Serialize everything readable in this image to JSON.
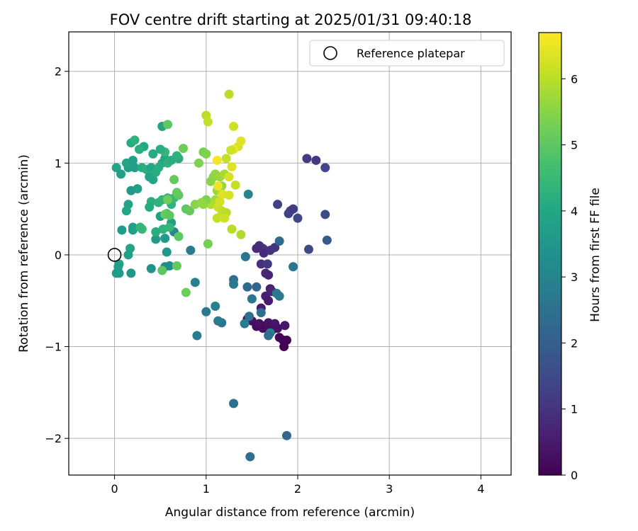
{
  "chart_data": {
    "type": "scatter",
    "title": "FOV centre drift starting at 2025/01/31 09:40:18",
    "xlabel": "Angular distance from reference (arcmin)",
    "ylabel": "Rotation from reference (arcmin)",
    "xlim": [
      -0.5,
      4.33
    ],
    "ylim": [
      -2.4,
      2.43
    ],
    "xticks": [
      "0",
      "1",
      "2",
      "3",
      "4"
    ],
    "yticks": [
      "2",
      "1",
      "0",
      "−1",
      "−2"
    ],
    "grid": true,
    "legend": {
      "placement": "top-right",
      "entries": [
        "Reference platepar"
      ]
    },
    "reference_point": {
      "name": "Reference platepar",
      "x": 0,
      "y": 0
    },
    "colorbar": {
      "label": "Hours from first FF file",
      "range": [
        0,
        6.7
      ],
      "ticks": [
        "0",
        "1",
        "2",
        "3",
        "4",
        "5",
        "6"
      ],
      "colormap": "viridis"
    },
    "points": [
      [
        1.45,
        -0.7,
        0.2
      ],
      [
        1.5,
        -0.72,
        0.3
      ],
      [
        1.55,
        -0.78,
        0.2
      ],
      [
        1.58,
        -0.75,
        0.3
      ],
      [
        1.62,
        -0.8,
        0.25
      ],
      [
        1.65,
        -0.77,
        0.2
      ],
      [
        1.68,
        -0.74,
        0.35
      ],
      [
        1.7,
        -0.78,
        0.3
      ],
      [
        1.72,
        -0.82,
        0.2
      ],
      [
        1.75,
        -0.75,
        0.4
      ],
      [
        1.78,
        -0.8,
        0.3
      ],
      [
        1.8,
        -0.9,
        0.1
      ],
      [
        1.84,
        -0.93,
        0.05
      ],
      [
        1.85,
        -1.0,
        0.0
      ],
      [
        1.88,
        -0.93,
        0.05
      ],
      [
        1.86,
        -0.77,
        0.4
      ],
      [
        1.6,
        -0.58,
        0.5
      ],
      [
        1.65,
        -0.45,
        0.6
      ],
      [
        1.68,
        -0.5,
        0.5
      ],
      [
        1.7,
        -0.37,
        0.6
      ],
      [
        1.72,
        -0.4,
        0.7
      ],
      [
        1.65,
        -0.2,
        0.8
      ],
      [
        1.68,
        -0.22,
        0.7
      ],
      [
        1.6,
        -0.1,
        0.9
      ],
      [
        1.62,
        0.07,
        1.0
      ],
      [
        1.58,
        0.1,
        0.9
      ],
      [
        1.55,
        0.07,
        0.8
      ],
      [
        1.63,
        0.02,
        0.85
      ],
      [
        1.7,
        0.05,
        0.95
      ],
      [
        1.75,
        0.08,
        1.0
      ],
      [
        1.67,
        -0.1,
        1.1
      ],
      [
        1.78,
        0.55,
        1.3
      ],
      [
        2.2,
        1.03,
        1.1
      ],
      [
        2.1,
        1.05,
        1.2
      ],
      [
        2.3,
        0.95,
        1.4
      ],
      [
        1.9,
        0.45,
        1.3
      ],
      [
        1.92,
        0.48,
        1.35
      ],
      [
        2.0,
        0.4,
        1.4
      ],
      [
        1.95,
        0.5,
        1.2
      ],
      [
        2.3,
        0.44,
        1.6
      ],
      [
        2.32,
        0.16,
        1.9
      ],
      [
        2.12,
        0.06,
        1.5
      ],
      [
        1.8,
        0.15,
        2.3
      ],
      [
        1.95,
        -0.13,
        2.6
      ],
      [
        1.8,
        -0.45,
        2.8
      ],
      [
        1.77,
        -0.42,
        2.7
      ],
      [
        1.7,
        -0.85,
        2.9
      ],
      [
        1.6,
        -0.63,
        2.5
      ],
      [
        1.68,
        -0.88,
        2.4
      ],
      [
        1.55,
        -0.35,
        2.2
      ],
      [
        1.5,
        -0.48,
        2.6
      ],
      [
        1.47,
        -0.67,
        2.5
      ],
      [
        1.42,
        -0.75,
        2.8
      ],
      [
        1.45,
        -0.35,
        2.3
      ],
      [
        1.43,
        -0.02,
        2.6
      ],
      [
        1.3,
        -0.27,
        2.5
      ],
      [
        1.3,
        -0.32,
        2.7
      ],
      [
        1.17,
        -0.74,
        2.6
      ],
      [
        1.13,
        -0.72,
        2.8
      ],
      [
        1.1,
        -0.56,
        2.9
      ],
      [
        1.0,
        -0.62,
        2.7
      ],
      [
        0.9,
        -0.88,
        2.8
      ],
      [
        0.88,
        -0.3,
        2.9
      ],
      [
        0.83,
        0.05,
        2.8
      ],
      [
        1.46,
        0.66,
        3.0
      ],
      [
        1.3,
        -1.62,
        2.5
      ],
      [
        1.88,
        -1.97,
        2.2
      ],
      [
        1.48,
        -2.2,
        2.4
      ],
      [
        0.65,
        0.25,
        3.1
      ],
      [
        0.6,
        -0.12,
        3.3
      ],
      [
        0.57,
        0.03,
        3.5
      ],
      [
        0.55,
        0.18,
        3.6
      ],
      [
        0.62,
        0.35,
        3.7
      ],
      [
        0.5,
        0.42,
        3.8
      ],
      [
        0.45,
        0.17,
        3.6
      ],
      [
        0.55,
        -0.13,
        3.2
      ],
      [
        0.4,
        -0.15,
        3.4
      ],
      [
        0.2,
        0.27,
        3.7
      ],
      [
        0.2,
        0.3,
        3.8
      ],
      [
        0.17,
        0.07,
        3.9
      ],
      [
        0.15,
        0.0,
        3.8
      ],
      [
        0.08,
        0.27,
        3.6
      ],
      [
        0.05,
        -0.1,
        3.9
      ],
      [
        0.04,
        -0.13,
        3.8
      ],
      [
        0.02,
        -0.2,
        3.7
      ],
      [
        0.05,
        -0.2,
        3.6
      ],
      [
        0.18,
        -0.2,
        3.5
      ],
      [
        0.02,
        0.95,
        3.9
      ],
      [
        0.07,
        0.88,
        3.8
      ],
      [
        0.15,
        0.95,
        3.7
      ],
      [
        0.13,
        1.0,
        3.9
      ],
      [
        0.2,
        1.03,
        3.8
      ],
      [
        0.22,
        0.95,
        3.7
      ],
      [
        0.18,
        0.7,
        3.6
      ],
      [
        0.25,
        0.72,
        3.8
      ],
      [
        0.15,
        0.55,
        3.9
      ],
      [
        0.13,
        0.48,
        4.0
      ],
      [
        0.3,
        0.95,
        4.1
      ],
      [
        0.35,
        0.93,
        4.2
      ],
      [
        0.4,
        0.95,
        4.0
      ],
      [
        0.38,
        0.85,
        3.9
      ],
      [
        0.42,
        0.82,
        4.0
      ],
      [
        0.45,
        0.9,
        4.1
      ],
      [
        0.48,
        0.95,
        4.2
      ],
      [
        0.52,
        1.0,
        4.1
      ],
      [
        0.55,
        1.05,
        4.0
      ],
      [
        0.58,
        1.0,
        4.3
      ],
      [
        0.62,
        1.03,
        4.2
      ],
      [
        0.7,
        1.05,
        4.1
      ],
      [
        0.68,
        1.08,
        4.3
      ],
      [
        0.55,
        1.12,
        4.4
      ],
      [
        0.5,
        1.15,
        4.2
      ],
      [
        0.42,
        1.1,
        4.1
      ],
      [
        0.32,
        1.18,
        4.0
      ],
      [
        0.27,
        1.15,
        4.2
      ],
      [
        0.18,
        1.22,
        4.1
      ],
      [
        0.22,
        1.25,
        4.3
      ],
      [
        0.52,
        1.4,
        3.9
      ],
      [
        0.4,
        0.58,
        4.2
      ],
      [
        0.38,
        0.52,
        4.1
      ],
      [
        0.48,
        0.57,
        4.3
      ],
      [
        0.52,
        0.6,
        4.4
      ],
      [
        0.62,
        0.55,
        4.3
      ],
      [
        0.65,
        0.62,
        4.5
      ],
      [
        0.58,
        0.62,
        4.4
      ],
      [
        0.57,
        0.45,
        4.6
      ],
      [
        0.53,
        0.28,
        4.3
      ],
      [
        0.6,
        0.3,
        4.4
      ],
      [
        0.3,
        0.28,
        4.5
      ],
      [
        0.28,
        0.3,
        4.4
      ],
      [
        0.45,
        0.25,
        4.2
      ],
      [
        0.58,
        1.42,
        5.0
      ],
      [
        0.75,
        1.16,
        5.2
      ],
      [
        0.7,
        0.65,
        5.0
      ],
      [
        0.68,
        0.68,
        5.1
      ],
      [
        0.65,
        0.82,
        5.1
      ],
      [
        0.58,
        0.6,
        5.2
      ],
      [
        0.55,
        0.44,
        5.1
      ],
      [
        0.6,
        0.43,
        5.0
      ],
      [
        0.78,
        0.5,
        5.0
      ],
      [
        0.82,
        0.48,
        5.1
      ],
      [
        0.7,
        0.2,
        5.0
      ],
      [
        0.68,
        -0.12,
        5.1
      ],
      [
        0.52,
        -0.17,
        5.0
      ],
      [
        0.78,
        -0.41,
        5.2
      ],
      [
        0.88,
        0.55,
        5.5
      ],
      [
        0.92,
        1.0,
        5.4
      ],
      [
        0.97,
        1.12,
        5.3
      ],
      [
        1.0,
        1.1,
        5.4
      ],
      [
        1.05,
        0.8,
        5.5
      ],
      [
        1.08,
        0.85,
        5.5
      ],
      [
        1.1,
        0.88,
        5.6
      ],
      [
        1.15,
        0.85,
        5.7
      ],
      [
        1.2,
        0.88,
        5.8
      ],
      [
        1.17,
        0.75,
        5.6
      ],
      [
        1.12,
        0.7,
        5.7
      ],
      [
        1.1,
        0.6,
        5.8
      ],
      [
        1.05,
        0.55,
        5.9
      ],
      [
        0.97,
        0.55,
        5.6
      ],
      [
        1.0,
        0.6,
        5.4
      ],
      [
        1.02,
        0.12,
        5.3
      ],
      [
        0.95,
        0.57,
        5.6
      ],
      [
        1.0,
        1.52,
        6.0
      ],
      [
        1.02,
        1.45,
        6.1
      ],
      [
        1.25,
        1.75,
        6.0
      ],
      [
        1.3,
        1.4,
        6.2
      ],
      [
        1.35,
        1.18,
        6.3
      ],
      [
        1.38,
        1.24,
        6.4
      ],
      [
        1.3,
        1.15,
        6.5
      ],
      [
        1.27,
        1.14,
        6.2
      ],
      [
        1.22,
        1.05,
        6.1
      ],
      [
        1.12,
        1.03,
        6.6
      ],
      [
        1.28,
        0.96,
        6.4
      ],
      [
        1.25,
        0.85,
        6.3
      ],
      [
        1.32,
        0.76,
        6.1
      ],
      [
        1.13,
        0.75,
        6.5
      ],
      [
        1.18,
        0.66,
        6.4
      ],
      [
        1.25,
        0.65,
        6.3
      ],
      [
        1.15,
        0.58,
        6.3
      ],
      [
        1.13,
        0.52,
        6.2
      ],
      [
        1.17,
        0.48,
        6.1
      ],
      [
        1.22,
        0.46,
        6.0
      ],
      [
        1.12,
        0.4,
        6.1
      ],
      [
        1.2,
        0.4,
        6.2
      ],
      [
        1.28,
        0.28,
        6.0
      ],
      [
        1.38,
        0.22,
        5.9
      ]
    ]
  }
}
